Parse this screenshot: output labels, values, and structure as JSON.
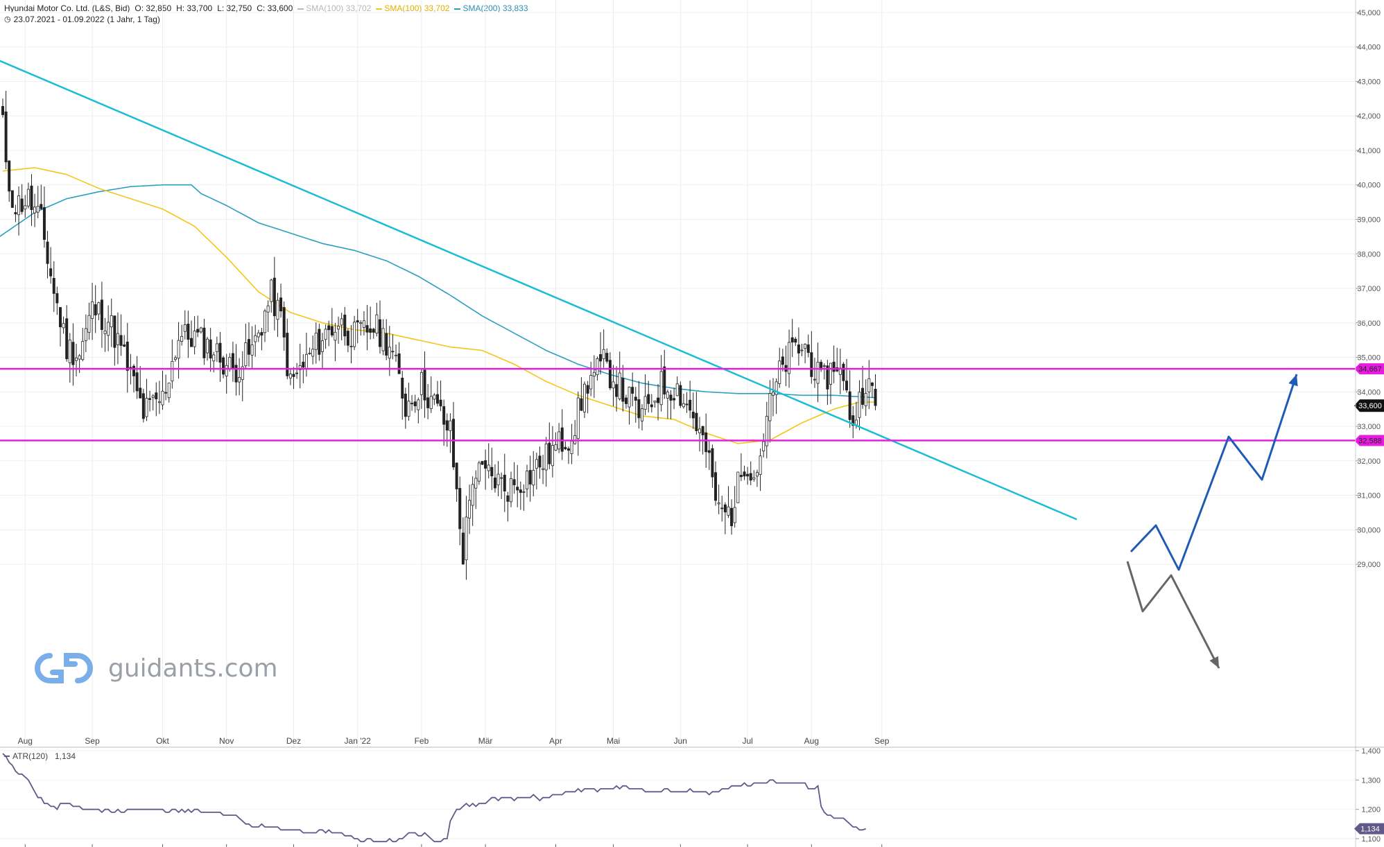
{
  "header": {
    "instrument": "Hyundai Motor Co. Ltd. (L&S, Bid)",
    "open": "O: 32,850",
    "high": "H: 33,700",
    "low": "L: 32,750",
    "close": "C: 33,600",
    "sma_a_label": "SMA(100)",
    "sma_a_value": "33,702",
    "sma_b_label": "SMA(100)",
    "sma_b_value": "33,702",
    "sma_c_label": "SMA(200)",
    "sma_c_value": "33,833",
    "range": "23.07.2021 - 01.09.2022",
    "range_note": "(1 Jahr, 1 Tag)"
  },
  "watermark": {
    "text": "guidants.com"
  },
  "colors": {
    "sma100": "#f5c518",
    "sma100_grey": "#b8b8b8",
    "sma200": "#2b9fc1",
    "trendline": "#1cbcd6",
    "level": "#e81ce0",
    "candle": "#222222",
    "atr": "#5f5a8a",
    "arrow_up": "#1f5bb5",
    "arrow_down": "#666666"
  },
  "chart_data": [
    {
      "type": "candlestick",
      "title": "Hyundai Motor Co. Ltd. (L&S, Bid)",
      "x_ticks": [
        "Aug",
        "Sep",
        "Okt",
        "Nov",
        "Dez",
        "Jan '22",
        "Feb",
        "Mär",
        "Apr",
        "Mai",
        "Jun",
        "Jul",
        "Aug",
        "Sep"
      ],
      "y_ticks": [
        "29,000",
        "30,000",
        "31,000",
        "32,000",
        "33,000",
        "34,000",
        "35,000",
        "36,000",
        "37,000",
        "38,000",
        "39,000",
        "40,000",
        "41,000",
        "42,000",
        "43,000",
        "44,000",
        "45,000"
      ],
      "ylim": [
        28.7,
        45.2
      ],
      "months_idx": [
        7,
        28,
        50,
        70,
        91,
        111,
        131,
        151,
        173,
        191,
        212,
        233,
        253,
        275
      ],
      "anchors": [
        [
          0,
          41.9
        ],
        [
          1,
          40.3
        ],
        [
          4,
          39.4
        ],
        [
          8,
          39.6
        ],
        [
          12,
          38.9
        ],
        [
          16,
          36.9
        ],
        [
          20,
          35.3
        ],
        [
          24,
          35.1
        ],
        [
          28,
          36.4
        ],
        [
          33,
          36.1
        ],
        [
          38,
          35.0
        ],
        [
          44,
          33.4
        ],
        [
          50,
          33.8
        ],
        [
          55,
          35.6
        ],
        [
          60,
          35.6
        ],
        [
          66,
          35.2
        ],
        [
          72,
          34.6
        ],
        [
          78,
          35.2
        ],
        [
          84,
          36.8
        ],
        [
          87,
          36.1
        ],
        [
          90,
          34.2
        ],
        [
          95,
          34.9
        ],
        [
          100,
          35.6
        ],
        [
          105,
          36.0
        ],
        [
          110,
          35.6
        ],
        [
          116,
          35.9
        ],
        [
          121,
          35.4
        ],
        [
          126,
          33.6
        ],
        [
          131,
          34.2
        ],
        [
          136,
          33.5
        ],
        [
          140,
          32.8
        ],
        [
          144,
          29.3
        ],
        [
          147,
          31.6
        ],
        [
          152,
          31.6
        ],
        [
          158,
          31.2
        ],
        [
          165,
          31.6
        ],
        [
          172,
          32.3
        ],
        [
          178,
          32.8
        ],
        [
          183,
          34.3
        ],
        [
          188,
          34.8
        ],
        [
          194,
          34.0
        ],
        [
          200,
          33.3
        ],
        [
          206,
          34.2
        ],
        [
          211,
          34.1
        ],
        [
          216,
          33.3
        ],
        [
          220,
          32.3
        ],
        [
          224,
          30.5
        ],
        [
          228,
          30.5
        ],
        [
          232,
          32.0
        ],
        [
          236,
          31.7
        ],
        [
          239,
          33.3
        ],
        [
          243,
          34.5
        ],
        [
          247,
          35.2
        ],
        [
          251,
          35.3
        ],
        [
          256,
          34.2
        ],
        [
          261,
          34.9
        ],
        [
          266,
          33.1
        ],
        [
          270,
          34.4
        ],
        [
          273,
          33.6
        ]
      ],
      "levels": [
        34.667,
        32.588
      ],
      "level_labels": [
        "34,667",
        "32,588"
      ],
      "last_price": 33.6,
      "last_price_label": "33,600",
      "trendline": [
        [
          -1,
          43.6
        ],
        [
          336,
          30.3
        ]
      ],
      "sma100_anchors": [
        [
          0,
          40.4
        ],
        [
          10,
          40.5
        ],
        [
          20,
          40.3
        ],
        [
          30,
          39.9
        ],
        [
          40,
          39.6
        ],
        [
          50,
          39.3
        ],
        [
          60,
          38.8
        ],
        [
          70,
          37.9
        ],
        [
          80,
          36.9
        ],
        [
          90,
          36.3
        ],
        [
          100,
          36.0
        ],
        [
          110,
          35.8
        ],
        [
          120,
          35.7
        ],
        [
          130,
          35.5
        ],
        [
          140,
          35.3
        ],
        [
          150,
          35.2
        ],
        [
          160,
          34.8
        ],
        [
          170,
          34.3
        ],
        [
          180,
          33.9
        ],
        [
          190,
          33.6
        ],
        [
          200,
          33.3
        ],
        [
          210,
          33.2
        ],
        [
          220,
          32.8
        ],
        [
          230,
          32.5
        ],
        [
          240,
          32.6
        ],
        [
          250,
          33.1
        ],
        [
          260,
          33.5
        ],
        [
          268,
          33.7
        ],
        [
          273,
          33.7
        ]
      ],
      "sma200_anchors": [
        [
          -1,
          38.5
        ],
        [
          10,
          39.2
        ],
        [
          20,
          39.6
        ],
        [
          30,
          39.8
        ],
        [
          40,
          39.95
        ],
        [
          50,
          40.0
        ],
        [
          59,
          40.0
        ],
        [
          62,
          39.75
        ],
        [
          70,
          39.4
        ],
        [
          80,
          38.9
        ],
        [
          90,
          38.6
        ],
        [
          100,
          38.3
        ],
        [
          110,
          38.1
        ],
        [
          120,
          37.8
        ],
        [
          130,
          37.35
        ],
        [
          140,
          36.8
        ],
        [
          150,
          36.2
        ],
        [
          160,
          35.7
        ],
        [
          170,
          35.2
        ],
        [
          180,
          34.8
        ],
        [
          190,
          34.5
        ],
        [
          200,
          34.25
        ],
        [
          210,
          34.1
        ],
        [
          220,
          34.0
        ],
        [
          230,
          33.95
        ],
        [
          240,
          33.95
        ],
        [
          250,
          33.9
        ],
        [
          260,
          33.9
        ],
        [
          273,
          33.83
        ]
      ],
      "forecast_up": [
        [
          1631,
          796
        ],
        [
          1667,
          758
        ],
        [
          1700,
          822
        ],
        [
          1772,
          630
        ],
        [
          1820,
          692
        ],
        [
          1870,
          540
        ]
      ],
      "forecast_down": [
        [
          1626,
          810
        ],
        [
          1648,
          882
        ],
        [
          1689,
          830
        ],
        [
          1758,
          964
        ]
      ]
    },
    {
      "type": "line",
      "title": "ATR(120)",
      "value_label": "1,134",
      "series": [
        {
          "name": "ATR(120)",
          "values": [
            1.39,
            1.38,
            1.36,
            1.35,
            1.33,
            1.32,
            1.32,
            1.31,
            1.3,
            1.28,
            1.26,
            1.24,
            1.24,
            1.22,
            1.22,
            1.21,
            1.21,
            1.2,
            1.22,
            1.22,
            1.22,
            1.22,
            1.21,
            1.21,
            1.21,
            1.2,
            1.2,
            1.2,
            1.2,
            1.2,
            1.2,
            1.19,
            1.2,
            1.2,
            1.19,
            1.19,
            1.2,
            1.19,
            1.19,
            1.2,
            1.2,
            1.2,
            1.2,
            1.2,
            1.2,
            1.2,
            1.2,
            1.2,
            1.2,
            1.2,
            1.2,
            1.19,
            1.19,
            1.2,
            1.2,
            1.19,
            1.2,
            1.19,
            1.2,
            1.19,
            1.2,
            1.2,
            1.19,
            1.19,
            1.19,
            1.19,
            1.19,
            1.19,
            1.19,
            1.18,
            1.18,
            1.18,
            1.18,
            1.18,
            1.17,
            1.16,
            1.15,
            1.15,
            1.14,
            1.14,
            1.14,
            1.15,
            1.14,
            1.14,
            1.14,
            1.14,
            1.14,
            1.13,
            1.13,
            1.13,
            1.13,
            1.13,
            1.13,
            1.13,
            1.12,
            1.12,
            1.12,
            1.12,
            1.12,
            1.13,
            1.13,
            1.12,
            1.13,
            1.12,
            1.12,
            1.12,
            1.12,
            1.11,
            1.11,
            1.11,
            1.1,
            1.1,
            1.09,
            1.09,
            1.1,
            1.1,
            1.09,
            1.09,
            1.09,
            1.09,
            1.09,
            1.1,
            1.09,
            1.09,
            1.1,
            1.1,
            1.11,
            1.12,
            1.12,
            1.12,
            1.11,
            1.11,
            1.12,
            1.11,
            1.1,
            1.09,
            1.09,
            1.09,
            1.1,
            1.1,
            1.16,
            1.18,
            1.2,
            1.2,
            1.21,
            1.22,
            1.21,
            1.22,
            1.21,
            1.22,
            1.22,
            1.22,
            1.23,
            1.24,
            1.24,
            1.23,
            1.24,
            1.24,
            1.24,
            1.24,
            1.23,
            1.24,
            1.24,
            1.24,
            1.24,
            1.24,
            1.25,
            1.24,
            1.23,
            1.24,
            1.24,
            1.24,
            1.25,
            1.25,
            1.25,
            1.25,
            1.26,
            1.26,
            1.26,
            1.26,
            1.27,
            1.26,
            1.27,
            1.27,
            1.27,
            1.27,
            1.26,
            1.27,
            1.27,
            1.27,
            1.27,
            1.27,
            1.28,
            1.27,
            1.28,
            1.28,
            1.27,
            1.27,
            1.27,
            1.27,
            1.27,
            1.26,
            1.26,
            1.26,
            1.26,
            1.26,
            1.26,
            1.27,
            1.27,
            1.26,
            1.26,
            1.26,
            1.26,
            1.26,
            1.26,
            1.27,
            1.26,
            1.26,
            1.26,
            1.26,
            1.26,
            1.25,
            1.26,
            1.26,
            1.26,
            1.27,
            1.27,
            1.27,
            1.28,
            1.28,
            1.28,
            1.28,
            1.29,
            1.28,
            1.28,
            1.29,
            1.29,
            1.29,
            1.29,
            1.29,
            1.3,
            1.3,
            1.29,
            1.29,
            1.29,
            1.29,
            1.29,
            1.29,
            1.29,
            1.29,
            1.29,
            1.29,
            1.27,
            1.27,
            1.27,
            1.28,
            1.21,
            1.19,
            1.18,
            1.18,
            1.17,
            1.17,
            1.17,
            1.17,
            1.16,
            1.15,
            1.14,
            1.14,
            1.13,
            1.13,
            1.134
          ]
        }
      ],
      "y_ticks": [
        "1,100",
        "1,200",
        "1,300",
        "1,400"
      ],
      "ylim": [
        1.1,
        1.4
      ]
    }
  ]
}
